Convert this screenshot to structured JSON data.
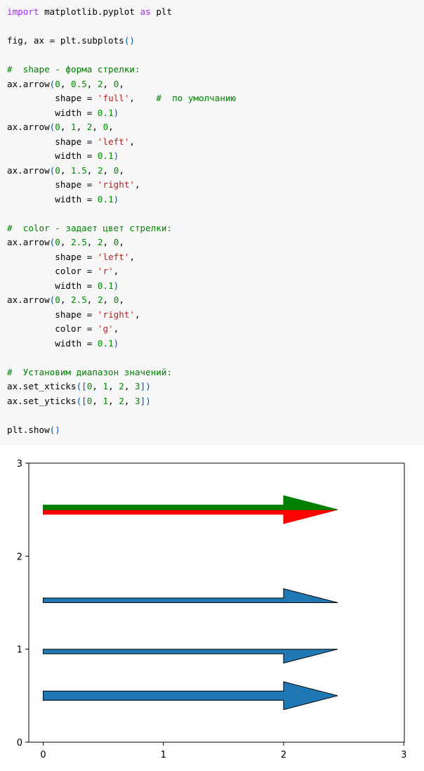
{
  "code": {
    "lines": [
      [
        {
          "t": "kw",
          "v": "import"
        },
        {
          "t": "t",
          "v": " matplotlib.pyplot "
        },
        {
          "t": "kw",
          "v": "as"
        },
        {
          "t": "t",
          "v": " plt"
        }
      ],
      [],
      [
        {
          "t": "t",
          "v": "fig, ax = plt.subplots"
        },
        {
          "t": "p",
          "v": "()"
        }
      ],
      [],
      [
        {
          "t": "cm",
          "v": "#  shape - форма стрелки:"
        }
      ],
      [
        {
          "t": "t",
          "v": "ax.arrow"
        },
        {
          "t": "p",
          "v": "("
        },
        {
          "t": "num",
          "v": "0"
        },
        {
          "t": "t",
          "v": ", "
        },
        {
          "t": "num",
          "v": "0.5"
        },
        {
          "t": "t",
          "v": ", "
        },
        {
          "t": "num",
          "v": "2"
        },
        {
          "t": "t",
          "v": ", "
        },
        {
          "t": "num",
          "v": "0"
        },
        {
          "t": "t",
          "v": ","
        }
      ],
      [
        {
          "t": "t",
          "v": "         shape = "
        },
        {
          "t": "str",
          "v": "'full'"
        },
        {
          "t": "t",
          "v": ",    "
        },
        {
          "t": "cm",
          "v": "#  по умолчанию"
        }
      ],
      [
        {
          "t": "t",
          "v": "         width = "
        },
        {
          "t": "num",
          "v": "0.1"
        },
        {
          "t": "p",
          "v": ")"
        }
      ],
      [
        {
          "t": "t",
          "v": "ax.arrow"
        },
        {
          "t": "p",
          "v": "("
        },
        {
          "t": "num",
          "v": "0"
        },
        {
          "t": "t",
          "v": ", "
        },
        {
          "t": "num",
          "v": "1"
        },
        {
          "t": "t",
          "v": ", "
        },
        {
          "t": "num",
          "v": "2"
        },
        {
          "t": "t",
          "v": ", "
        },
        {
          "t": "num",
          "v": "0"
        },
        {
          "t": "t",
          "v": ","
        }
      ],
      [
        {
          "t": "t",
          "v": "         shape = "
        },
        {
          "t": "str",
          "v": "'left'"
        },
        {
          "t": "t",
          "v": ","
        }
      ],
      [
        {
          "t": "t",
          "v": "         width = "
        },
        {
          "t": "num",
          "v": "0.1"
        },
        {
          "t": "p",
          "v": ")"
        }
      ],
      [
        {
          "t": "t",
          "v": "ax.arrow"
        },
        {
          "t": "p",
          "v": "("
        },
        {
          "t": "num",
          "v": "0"
        },
        {
          "t": "t",
          "v": ", "
        },
        {
          "t": "num",
          "v": "1.5"
        },
        {
          "t": "t",
          "v": ", "
        },
        {
          "t": "num",
          "v": "2"
        },
        {
          "t": "t",
          "v": ", "
        },
        {
          "t": "num",
          "v": "0"
        },
        {
          "t": "t",
          "v": ","
        }
      ],
      [
        {
          "t": "t",
          "v": "         shape = "
        },
        {
          "t": "str",
          "v": "'right'"
        },
        {
          "t": "t",
          "v": ","
        }
      ],
      [
        {
          "t": "t",
          "v": "         width = "
        },
        {
          "t": "num",
          "v": "0.1"
        },
        {
          "t": "p",
          "v": ")"
        }
      ],
      [],
      [
        {
          "t": "cm",
          "v": "#  color - задает цвет стрелки:"
        }
      ],
      [
        {
          "t": "t",
          "v": "ax.arrow"
        },
        {
          "t": "p",
          "v": "("
        },
        {
          "t": "num",
          "v": "0"
        },
        {
          "t": "t",
          "v": ", "
        },
        {
          "t": "num",
          "v": "2.5"
        },
        {
          "t": "t",
          "v": ", "
        },
        {
          "t": "num",
          "v": "2"
        },
        {
          "t": "t",
          "v": ", "
        },
        {
          "t": "num",
          "v": "0"
        },
        {
          "t": "t",
          "v": ","
        }
      ],
      [
        {
          "t": "t",
          "v": "         shape = "
        },
        {
          "t": "str",
          "v": "'left'"
        },
        {
          "t": "t",
          "v": ","
        }
      ],
      [
        {
          "t": "t",
          "v": "         color = "
        },
        {
          "t": "str",
          "v": "'r'"
        },
        {
          "t": "t",
          "v": ","
        }
      ],
      [
        {
          "t": "t",
          "v": "         width = "
        },
        {
          "t": "num",
          "v": "0.1"
        },
        {
          "t": "p",
          "v": ")"
        }
      ],
      [
        {
          "t": "t",
          "v": "ax.arrow"
        },
        {
          "t": "p",
          "v": "("
        },
        {
          "t": "num",
          "v": "0"
        },
        {
          "t": "t",
          "v": ", "
        },
        {
          "t": "num",
          "v": "2.5"
        },
        {
          "t": "t",
          "v": ", "
        },
        {
          "t": "num",
          "v": "2"
        },
        {
          "t": "t",
          "v": ", "
        },
        {
          "t": "num",
          "v": "0"
        },
        {
          "t": "t",
          "v": ","
        }
      ],
      [
        {
          "t": "t",
          "v": "         shape = "
        },
        {
          "t": "str",
          "v": "'right'"
        },
        {
          "t": "t",
          "v": ","
        }
      ],
      [
        {
          "t": "t",
          "v": "         color = "
        },
        {
          "t": "str",
          "v": "'g'"
        },
        {
          "t": "t",
          "v": ","
        }
      ],
      [
        {
          "t": "t",
          "v": "         width = "
        },
        {
          "t": "num",
          "v": "0.1"
        },
        {
          "t": "p",
          "v": ")"
        }
      ],
      [],
      [
        {
          "t": "cm",
          "v": "#  Установим диапазон значений:"
        }
      ],
      [
        {
          "t": "t",
          "v": "ax.set_xticks"
        },
        {
          "t": "p",
          "v": "(["
        },
        {
          "t": "num",
          "v": "0"
        },
        {
          "t": "t",
          "v": ", "
        },
        {
          "t": "num",
          "v": "1"
        },
        {
          "t": "t",
          "v": ", "
        },
        {
          "t": "num",
          "v": "2"
        },
        {
          "t": "t",
          "v": ", "
        },
        {
          "t": "num",
          "v": "3"
        },
        {
          "t": "p",
          "v": "])"
        }
      ],
      [
        {
          "t": "t",
          "v": "ax.set_yticks"
        },
        {
          "t": "p",
          "v": "(["
        },
        {
          "t": "num",
          "v": "0"
        },
        {
          "t": "t",
          "v": ", "
        },
        {
          "t": "num",
          "v": "1"
        },
        {
          "t": "t",
          "v": ", "
        },
        {
          "t": "num",
          "v": "2"
        },
        {
          "t": "t",
          "v": ", "
        },
        {
          "t": "num",
          "v": "3"
        },
        {
          "t": "p",
          "v": "])"
        }
      ],
      [],
      [
        {
          "t": "t",
          "v": "plt.show"
        },
        {
          "t": "p",
          "v": "()"
        }
      ]
    ],
    "colors": {
      "background": "#f7f7f7",
      "keyword": "#aa22ff",
      "comment": "#008000",
      "number": "#008800",
      "string": "#ba2121",
      "paren": "#0055aa"
    }
  },
  "chart_data": {
    "type": "arrows",
    "xlim": [
      0,
      3
    ],
    "ylim": [
      0,
      3
    ],
    "xticks": [
      0,
      1,
      2,
      3
    ],
    "yticks": [
      0,
      1,
      2,
      3
    ],
    "grid": false,
    "head_width": 0.3,
    "head_length": 0.45,
    "arrows": [
      {
        "x": 0,
        "y": 0.5,
        "dx": 2,
        "dy": 0,
        "width": 0.1,
        "shape": "full",
        "facecolor": "#1f77b4",
        "edgecolor": "#000000"
      },
      {
        "x": 0,
        "y": 1,
        "dx": 2,
        "dy": 0,
        "width": 0.1,
        "shape": "left",
        "facecolor": "#1f77b4",
        "edgecolor": "#000000"
      },
      {
        "x": 0,
        "y": 1.5,
        "dx": 2,
        "dy": 0,
        "width": 0.1,
        "shape": "right",
        "facecolor": "#1f77b4",
        "edgecolor": "#000000"
      },
      {
        "x": 0,
        "y": 2.5,
        "dx": 2,
        "dy": 0,
        "width": 0.1,
        "shape": "left",
        "facecolor": "#ff0000",
        "edgecolor": "#ff0000"
      },
      {
        "x": 0,
        "y": 2.5,
        "dx": 2,
        "dy": 0,
        "width": 0.1,
        "shape": "right",
        "facecolor": "#008000",
        "edgecolor": "#008000"
      }
    ]
  }
}
